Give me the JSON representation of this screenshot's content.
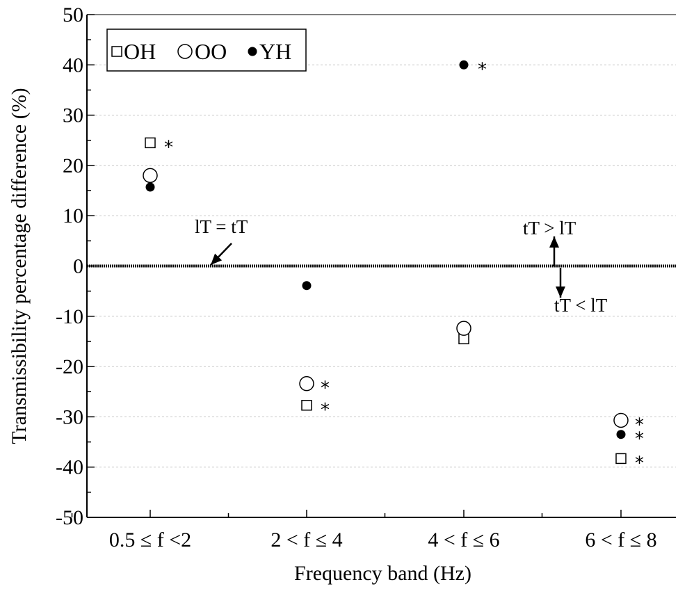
{
  "chart_data": {
    "type": "scatter",
    "xlabel": "Frequency band  (Hz)",
    "ylabel": "Transmissibility percentage difference (%)",
    "ylim": [
      -50,
      50
    ],
    "yticks": [
      -50,
      -40,
      -30,
      -20,
      -10,
      0,
      10,
      20,
      30,
      40,
      50
    ],
    "categories": [
      "0.5 ≤ f <2",
      "2 < f ≤ 4",
      "4 < f ≤ 6",
      "6 < f ≤ 8"
    ],
    "grid": "horizontal dashed",
    "legend_position": "top-left",
    "series": [
      {
        "name": "OH",
        "marker": "open-square",
        "values": [
          24.5,
          -27.7,
          -14.5,
          -38.3
        ],
        "significant": [
          true,
          true,
          false,
          true
        ]
      },
      {
        "name": "OO",
        "marker": "open-circle",
        "values": [
          18.0,
          -23.4,
          -12.4,
          -30.7
        ],
        "significant": [
          false,
          true,
          false,
          true
        ]
      },
      {
        "name": "YH",
        "marker": "filled-circle",
        "values": [
          15.7,
          -3.9,
          40.0,
          -33.5
        ],
        "significant": [
          false,
          false,
          true,
          true
        ]
      }
    ],
    "significance_marker": "*",
    "reference_line": {
      "y": 0,
      "label": "lT = tT"
    },
    "annotations": {
      "above": "tT > lT",
      "below": "tT < lT"
    }
  }
}
